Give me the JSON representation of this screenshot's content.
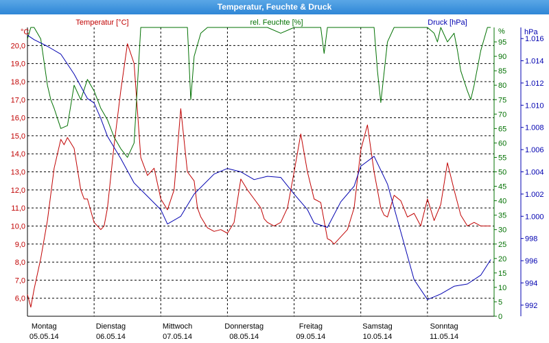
{
  "window": {
    "title": "Temperatur, Feuchte & Druck"
  },
  "colors": {
    "temperature": "#c00000",
    "humidity": "#007000",
    "pressure": "#0000b0",
    "grid": "#000000",
    "axis": "#000000"
  },
  "chart_data": {
    "type": "line",
    "title": "Temperatur, Feuchte & Druck",
    "grid": true,
    "x_range": [
      0,
      7
    ],
    "days": [
      {
        "name": "Montag",
        "date": "05.05.14"
      },
      {
        "name": "Dienstag",
        "date": "06.05.14"
      },
      {
        "name": "Mittwoch",
        "date": "07.05.14"
      },
      {
        "name": "Donnerstag",
        "date": "08.05.14"
      },
      {
        "name": "Freitag",
        "date": "09.05.14"
      },
      {
        "name": "Samstag",
        "date": "10.05.14"
      },
      {
        "name": "Sonntag",
        "date": "11.05.14"
      }
    ],
    "axes": {
      "temperature": {
        "label": "Temperatur [°C]",
        "unit": "°C",
        "range": [
          5.0,
          21.0
        ],
        "ticks": [
          "6,0",
          "7,0",
          "8,0",
          "9,0",
          "10,0",
          "11,0",
          "12,0",
          "13,0",
          "14,0",
          "15,0",
          "16,0",
          "17,0",
          "18,0",
          "19,0",
          "20,0"
        ]
      },
      "humidity": {
        "label": "rel. Feuchte [%]",
        "unit": "%",
        "range": [
          0,
          100
        ],
        "ticks": [
          "0",
          "5",
          "10",
          "15",
          "20",
          "25",
          "30",
          "35",
          "40",
          "45",
          "50",
          "55",
          "60",
          "65",
          "70",
          "75",
          "80",
          "85",
          "90",
          "95"
        ]
      },
      "pressure": {
        "label": "Druck [hPa]",
        "unit": "hPa",
        "range": [
          991,
          1017
        ],
        "ticks": [
          "992",
          "994",
          "996",
          "998",
          "1.000",
          "1.002",
          "1.004",
          "1.006",
          "1.008",
          "1.010",
          "1.012",
          "1.014",
          "1.016"
        ]
      }
    },
    "series": [
      {
        "name": "Temperatur [°C]",
        "axis": "temperature",
        "x": [
          0,
          0.05,
          0.1,
          0.2,
          0.3,
          0.4,
          0.5,
          0.55,
          0.6,
          0.7,
          0.8,
          0.85,
          0.9,
          1.0,
          1.1,
          1.15,
          1.2,
          1.3,
          1.4,
          1.5,
          1.6,
          1.7,
          1.8,
          1.9,
          2.0,
          2.1,
          2.2,
          2.3,
          2.4,
          2.5,
          2.55,
          2.6,
          2.7,
          2.8,
          2.9,
          3.0,
          3.1,
          3.2,
          3.3,
          3.4,
          3.5,
          3.55,
          3.6,
          3.7,
          3.8,
          3.9,
          4.0,
          4.1,
          4.2,
          4.3,
          4.4,
          4.5,
          4.55,
          4.6,
          4.7,
          4.8,
          4.9,
          5.0,
          5.1,
          5.2,
          5.3,
          5.35,
          5.4,
          5.5,
          5.6,
          5.7,
          5.8,
          5.9,
          6.0,
          6.1,
          6.2,
          6.3,
          6.4,
          6.5,
          6.55,
          6.6,
          6.7,
          6.8,
          6.9,
          6.95
        ],
        "values": [
          6.2,
          5.5,
          6.5,
          8.2,
          10.3,
          13.2,
          14.8,
          14.5,
          14.9,
          14.3,
          12.0,
          11.5,
          11.5,
          10.2,
          9.8,
          10.0,
          11.0,
          14.5,
          17.5,
          20.1,
          19.0,
          13.8,
          12.8,
          13.2,
          11.5,
          10.9,
          12.0,
          16.5,
          13.0,
          12.5,
          11.0,
          10.5,
          9.9,
          9.7,
          9.8,
          9.6,
          10.2,
          12.6,
          12.0,
          11.5,
          11.0,
          10.4,
          10.2,
          10.0,
          10.2,
          11.0,
          13.0,
          15.1,
          13.0,
          11.5,
          11.3,
          9.3,
          9.2,
          9.0,
          9.4,
          9.8,
          11.0,
          14.2,
          15.6,
          13.0,
          11.0,
          10.6,
          10.5,
          11.7,
          11.4,
          10.5,
          10.7,
          10.0,
          11.5,
          10.3,
          11.2,
          13.5,
          12.0,
          10.6,
          10.3,
          10.0,
          10.2,
          10.0,
          10.0,
          10.0
        ]
      },
      {
        "name": "rel. Feuchte [%]",
        "axis": "humidity",
        "x": [
          0,
          0.05,
          0.1,
          0.2,
          0.3,
          0.35,
          0.4,
          0.5,
          0.6,
          0.7,
          0.8,
          0.9,
          1.0,
          1.1,
          1.2,
          1.3,
          1.4,
          1.5,
          1.6,
          1.7,
          1.8,
          1.9,
          2.0,
          2.1,
          2.3,
          2.4,
          2.45,
          2.5,
          2.6,
          2.7,
          2.8,
          2.9,
          3.0,
          3.2,
          3.4,
          3.6,
          3.8,
          4.0,
          4.2,
          4.3,
          4.4,
          4.45,
          4.5,
          4.6,
          4.7,
          4.9,
          5.0,
          5.1,
          5.2,
          5.25,
          5.3,
          5.4,
          5.5,
          6.0,
          6.1,
          6.15,
          6.2,
          6.3,
          6.4,
          6.45,
          6.5,
          6.6,
          6.65,
          6.7,
          6.8,
          6.9,
          6.95
        ],
        "values": [
          96,
          100,
          100,
          96,
          80,
          75,
          72,
          65,
          66,
          80,
          75,
          82,
          78,
          72,
          68,
          62,
          58,
          55,
          60,
          100,
          100,
          100,
          100,
          100,
          100,
          100,
          75,
          90,
          98,
          100,
          100,
          100,
          100,
          100,
          100,
          100,
          98,
          100,
          100,
          100,
          100,
          91,
          100,
          100,
          100,
          100,
          100,
          100,
          100,
          85,
          74,
          95,
          100,
          100,
          98,
          95,
          100,
          95,
          98,
          92,
          85,
          78,
          75,
          80,
          92,
          100,
          100
        ]
      },
      {
        "name": "Druck [hPa]",
        "axis": "pressure",
        "x": [
          0,
          0.1,
          0.3,
          0.5,
          0.7,
          0.9,
          1.0,
          1.1,
          1.2,
          1.4,
          1.6,
          1.8,
          2.0,
          2.1,
          2.3,
          2.5,
          2.8,
          3.0,
          3.2,
          3.4,
          3.6,
          3.8,
          4.0,
          4.2,
          4.3,
          4.5,
          4.7,
          4.9,
          5.0,
          5.2,
          5.4,
          5.6,
          5.8,
          6.0,
          6.2,
          6.4,
          6.6,
          6.8,
          6.95
        ],
        "values": [
          1016.3,
          1015.9,
          1015.3,
          1014.6,
          1012.8,
          1010.6,
          1010.2,
          1008.8,
          1007.2,
          1005.2,
          1003.0,
          1001.8,
          1000.6,
          999.3,
          1000.0,
          1002.0,
          1003.8,
          1004.3,
          1004.0,
          1003.3,
          1003.6,
          1003.5,
          1002.0,
          1000.6,
          999.4,
          999.0,
          1001.3,
          1002.7,
          1004.5,
          1005.4,
          1002.9,
          998.6,
          994.3,
          992.5,
          993.0,
          993.7,
          993.9,
          994.7,
          996.1
        ]
      }
    ]
  }
}
